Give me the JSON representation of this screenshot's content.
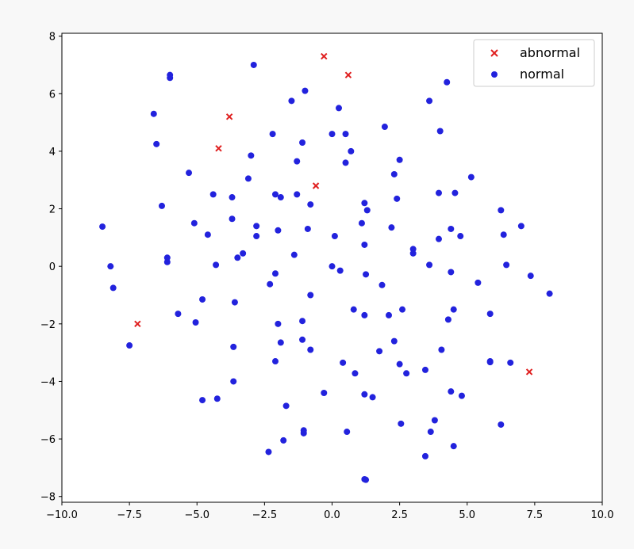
{
  "chart_data": {
    "type": "scatter",
    "title": "",
    "xlabel": "",
    "ylabel": "",
    "xlim": [
      -10,
      10
    ],
    "ylim": [
      -8.2,
      8.1
    ],
    "x_ticks": [
      -10.0,
      -7.5,
      -5.0,
      -2.5,
      0.0,
      2.5,
      5.0,
      7.5,
      10.0
    ],
    "x_tick_labels": [
      "−10.0",
      "−7.5",
      "−5.0",
      "−2.5",
      "0.0",
      "2.5",
      "5.0",
      "7.5",
      "10.0"
    ],
    "y_ticks": [
      -8,
      -6,
      -4,
      -2,
      0,
      2,
      4,
      6,
      8
    ],
    "y_tick_labels": [
      "−8",
      "−6",
      "−4",
      "−2",
      "0",
      "2",
      "4",
      "6",
      "8"
    ],
    "grid": false,
    "legend": {
      "placement": "top-right"
    },
    "series": [
      {
        "name": "abnormal",
        "marker": "x",
        "color": "#e02020",
        "points": [
          [
            -0.3,
            7.3
          ],
          [
            0.6,
            6.65
          ],
          [
            -3.8,
            5.2
          ],
          [
            -4.2,
            4.1
          ],
          [
            -0.6,
            2.8
          ],
          [
            -7.2,
            -2.0
          ],
          [
            7.3,
            -3.67
          ]
        ]
      },
      {
        "name": "normal",
        "marker": "o",
        "color": "#2222dd",
        "points": [
          [
            -2.9,
            7.0
          ],
          [
            -6.0,
            6.65
          ],
          [
            -6.0,
            6.55
          ],
          [
            4.25,
            6.4
          ],
          [
            -1.0,
            6.1
          ],
          [
            -6.6,
            5.3
          ],
          [
            -1.5,
            5.75
          ],
          [
            3.6,
            5.75
          ],
          [
            0.25,
            5.5
          ],
          [
            1.95,
            4.85
          ],
          [
            4.0,
            4.7
          ],
          [
            -2.2,
            4.6
          ],
          [
            0.0,
            4.6
          ],
          [
            0.5,
            4.6
          ],
          [
            -6.5,
            4.25
          ],
          [
            -1.1,
            4.3
          ],
          [
            0.7,
            4.0
          ],
          [
            -3.0,
            3.85
          ],
          [
            -1.3,
            3.65
          ],
          [
            2.5,
            3.7
          ],
          [
            0.5,
            3.6
          ],
          [
            -5.3,
            3.25
          ],
          [
            2.3,
            3.2
          ],
          [
            -3.1,
            3.05
          ],
          [
            5.15,
            3.1
          ],
          [
            -4.4,
            2.5
          ],
          [
            -2.1,
            2.5
          ],
          [
            -1.3,
            2.5
          ],
          [
            -3.7,
            2.4
          ],
          [
            -1.9,
            2.4
          ],
          [
            3.95,
            2.55
          ],
          [
            4.55,
            2.55
          ],
          [
            2.4,
            2.35
          ],
          [
            1.2,
            2.2
          ],
          [
            -0.8,
            2.15
          ],
          [
            -6.3,
            2.1
          ],
          [
            1.3,
            1.95
          ],
          [
            6.25,
            1.95
          ],
          [
            -3.7,
            1.65
          ],
          [
            -5.1,
            1.5
          ],
          [
            1.1,
            1.5
          ],
          [
            -2.8,
            1.4
          ],
          [
            7.0,
            1.4
          ],
          [
            -0.9,
            1.3
          ],
          [
            2.2,
            1.35
          ],
          [
            4.4,
            1.3
          ],
          [
            -2.0,
            1.25
          ],
          [
            -4.6,
            1.1
          ],
          [
            -2.8,
            1.05
          ],
          [
            0.1,
            1.05
          ],
          [
            6.35,
            1.1
          ],
          [
            4.75,
            1.05
          ],
          [
            3.95,
            0.95
          ],
          [
            1.2,
            0.75
          ],
          [
            3.0,
            0.6
          ],
          [
            3.0,
            0.45
          ],
          [
            -3.3,
            0.45
          ],
          [
            -3.5,
            0.3
          ],
          [
            -1.4,
            0.4
          ],
          [
            -6.1,
            0.3
          ],
          [
            -6.1,
            0.15
          ],
          [
            -4.3,
            0.05
          ],
          [
            3.6,
            0.05
          ],
          [
            6.45,
            0.05
          ],
          [
            0.0,
            0.0
          ],
          [
            -8.2,
            0.0
          ],
          [
            0.3,
            -0.15
          ],
          [
            4.4,
            -0.2
          ],
          [
            -2.1,
            -0.25
          ],
          [
            1.25,
            -0.28
          ],
          [
            7.35,
            -0.33
          ],
          [
            5.4,
            -0.57
          ],
          [
            -2.3,
            -0.62
          ],
          [
            1.85,
            -0.65
          ],
          [
            -8.1,
            -0.75
          ],
          [
            8.05,
            -0.95
          ],
          [
            -0.8,
            -1.0
          ],
          [
            -4.8,
            -1.15
          ],
          [
            -3.6,
            -1.25
          ],
          [
            0.8,
            -1.5
          ],
          [
            2.6,
            -1.5
          ],
          [
            4.5,
            -1.5
          ],
          [
            -5.7,
            -1.65
          ],
          [
            5.85,
            -1.65
          ],
          [
            1.2,
            -1.7
          ],
          [
            2.1,
            -1.7
          ],
          [
            -1.1,
            -1.9
          ],
          [
            4.3,
            -1.85
          ],
          [
            -5.05,
            -1.95
          ],
          [
            -2.0,
            -2.0
          ],
          [
            -1.1,
            -2.55
          ],
          [
            2.3,
            -2.6
          ],
          [
            -1.9,
            -2.65
          ],
          [
            -7.5,
            -2.75
          ],
          [
            -3.65,
            -2.8
          ],
          [
            -0.8,
            -2.9
          ],
          [
            4.05,
            -2.9
          ],
          [
            1.75,
            -2.95
          ],
          [
            5.85,
            -3.3
          ],
          [
            5.85,
            -3.33
          ],
          [
            -2.1,
            -3.3
          ],
          [
            0.4,
            -3.35
          ],
          [
            6.6,
            -3.35
          ],
          [
            2.5,
            -3.4
          ],
          [
            3.45,
            -3.6
          ],
          [
            0.85,
            -3.72
          ],
          [
            2.75,
            -3.72
          ],
          [
            -3.65,
            -4.0
          ],
          [
            4.4,
            -4.35
          ],
          [
            -0.3,
            -4.4
          ],
          [
            1.2,
            -4.45
          ],
          [
            4.8,
            -4.5
          ],
          [
            1.5,
            -4.55
          ],
          [
            -4.25,
            -4.6
          ],
          [
            -4.8,
            -4.65
          ],
          [
            -1.7,
            -4.85
          ],
          [
            3.8,
            -5.35
          ],
          [
            2.55,
            -5.47
          ],
          [
            6.25,
            -5.5
          ],
          [
            -1.05,
            -5.7
          ],
          [
            -1.05,
            -5.8
          ],
          [
            0.55,
            -5.75
          ],
          [
            3.65,
            -5.75
          ],
          [
            -1.8,
            -6.05
          ],
          [
            4.5,
            -6.25
          ],
          [
            -2.35,
            -6.45
          ],
          [
            3.45,
            -6.6
          ],
          [
            1.2,
            -7.4
          ],
          [
            1.25,
            -7.42
          ],
          [
            -8.5,
            1.38
          ]
        ]
      }
    ]
  }
}
